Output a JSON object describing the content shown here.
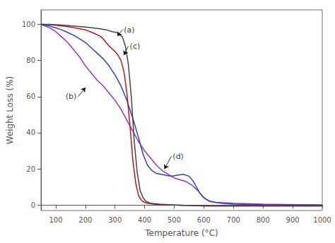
{
  "chart_data": {
    "type": "line",
    "xlabel": "Temperature (°C)",
    "ylabel": "Weight Loss (%)",
    "xlim": [
      50,
      1000
    ],
    "ylim": [
      -3,
      108
    ],
    "xticks": [
      100,
      200,
      300,
      400,
      500,
      600,
      700,
      800,
      900,
      1000
    ],
    "yticks": [
      0,
      20,
      40,
      60,
      80,
      100
    ],
    "grid": false,
    "series": [
      {
        "name": "(b)",
        "color": "#9933cc",
        "x": [
          50,
          80,
          100,
          120,
          140,
          160,
          180,
          200,
          220,
          240,
          260,
          280,
          300,
          320,
          340,
          360,
          380,
          400,
          420,
          440,
          460,
          480,
          500,
          520,
          540,
          560,
          580,
          600,
          620,
          640,
          700,
          800,
          1000
        ],
        "values": [
          100,
          98,
          96,
          93,
          90,
          86,
          82,
          77,
          73,
          69,
          66,
          62,
          58,
          53,
          47,
          41,
          35,
          30,
          26,
          22,
          19,
          17,
          15,
          14,
          13,
          11,
          8,
          4,
          2,
          1.5,
          1,
          0.5,
          0
        ]
      },
      {
        "name": "(d)",
        "color": "#2244cc",
        "x": [
          50,
          80,
          100,
          120,
          140,
          160,
          180,
          200,
          220,
          240,
          260,
          280,
          300,
          320,
          340,
          360,
          380,
          395,
          410,
          425,
          440,
          455,
          470,
          490,
          510,
          530,
          550,
          565,
          575,
          585,
          595,
          605,
          615,
          625,
          640,
          660,
          700,
          800,
          1000
        ],
        "values": [
          100,
          99,
          98,
          97,
          95.5,
          94,
          92,
          90,
          87,
          84,
          81,
          77,
          72,
          66,
          58,
          48,
          37,
          28,
          22,
          19,
          17.5,
          17,
          16.5,
          16,
          16.5,
          17,
          16,
          13,
          10,
          7,
          5,
          3.5,
          2.5,
          2,
          1.5,
          1,
          0.5,
          0.2,
          0
        ]
      },
      {
        "name": "(c)",
        "color": "#cc1111",
        "x": [
          50,
          80,
          100,
          150,
          200,
          230,
          250,
          260,
          270,
          280,
          290,
          300,
          310,
          320,
          330,
          340,
          350,
          360,
          370,
          380,
          390,
          400,
          410,
          430,
          450,
          500,
          600,
          700,
          1000
        ],
        "values": [
          100,
          99.8,
          99.5,
          98.5,
          97,
          95,
          93.5,
          92,
          90,
          88,
          86.5,
          85,
          83,
          80,
          74,
          62,
          45,
          25,
          12,
          5,
          2.5,
          1.5,
          1,
          0.5,
          0.2,
          0,
          -0.5,
          -0.5,
          -0.5
        ]
      },
      {
        "name": "(a)",
        "color": "#444444",
        "x": [
          50,
          80,
          100,
          130,
          150,
          200,
          250,
          270,
          290,
          305,
          315,
          325,
          335,
          345,
          355,
          365,
          375,
          385,
          395,
          405,
          420,
          450,
          500,
          600,
          700,
          1000
        ],
        "values": [
          100,
          100,
          99.8,
          99.5,
          99.2,
          98.5,
          97.5,
          97,
          96,
          95.5,
          94.5,
          93,
          88,
          78,
          60,
          35,
          18,
          8,
          4,
          2,
          1,
          0.5,
          0,
          -0.5,
          -0.5,
          -0.5
        ]
      }
    ],
    "annotations": [
      {
        "text": "(a)",
        "x": 325,
        "y": 97,
        "arrow_x": 308,
        "arrow_y": 93.5
      },
      {
        "text": "(b)",
        "x": 175,
        "y": 60,
        "arrow_x": 200,
        "arrow_y": 65
      },
      {
        "text": "(c)",
        "x": 345,
        "y": 88,
        "arrow_x": 330,
        "arrow_y": 83
      },
      {
        "text": "(d)",
        "x": 490,
        "y": 27,
        "arrow_x": 467,
        "arrow_y": 20
      }
    ]
  }
}
